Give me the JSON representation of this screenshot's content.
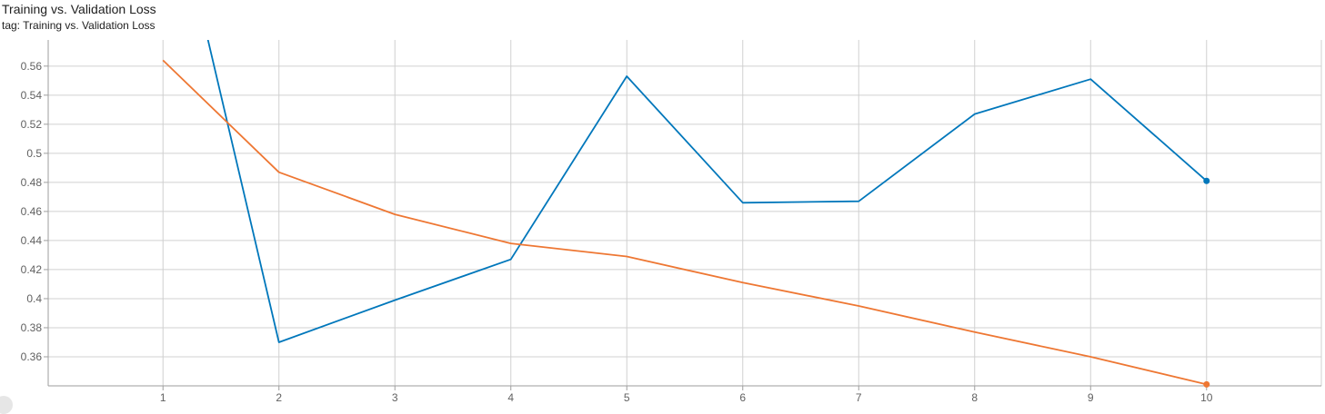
{
  "header": {
    "title": "Training vs. Validation Loss",
    "subtitle": "tag: Training vs. Validation Loss"
  },
  "chart_data": {
    "type": "line",
    "title": "Training vs. Validation Loss",
    "xlabel": "",
    "ylabel": "",
    "x": [
      1,
      2,
      3,
      4,
      5,
      6,
      7,
      8,
      9,
      10
    ],
    "xlim": [
      0.01,
      10.99
    ],
    "ylim": [
      0.34,
      0.578
    ],
    "xticks": [
      1,
      2,
      3,
      4,
      5,
      6,
      7,
      8,
      9,
      10
    ],
    "yticks": [
      0.36,
      0.38,
      0.4,
      0.42,
      0.44,
      0.46,
      0.48,
      0.5,
      0.52,
      0.54,
      0.56
    ],
    "ytick_labels": [
      "0.36",
      "0.38",
      "0.4",
      "0.42",
      "0.44",
      "0.46",
      "0.48",
      "0.5",
      "0.52",
      "0.54",
      "0.56"
    ],
    "grid": true,
    "legend": "none",
    "series": [
      {
        "color": "#0077bb",
        "values": [
          0.71,
          0.37,
          0.399,
          0.427,
          0.553,
          0.466,
          0.467,
          0.527,
          0.551,
          0.481
        ]
      },
      {
        "color": "#ee7733",
        "values": [
          0.564,
          0.487,
          0.458,
          0.438,
          0.429,
          0.411,
          0.395,
          0.377,
          0.36,
          0.341
        ]
      }
    ]
  }
}
